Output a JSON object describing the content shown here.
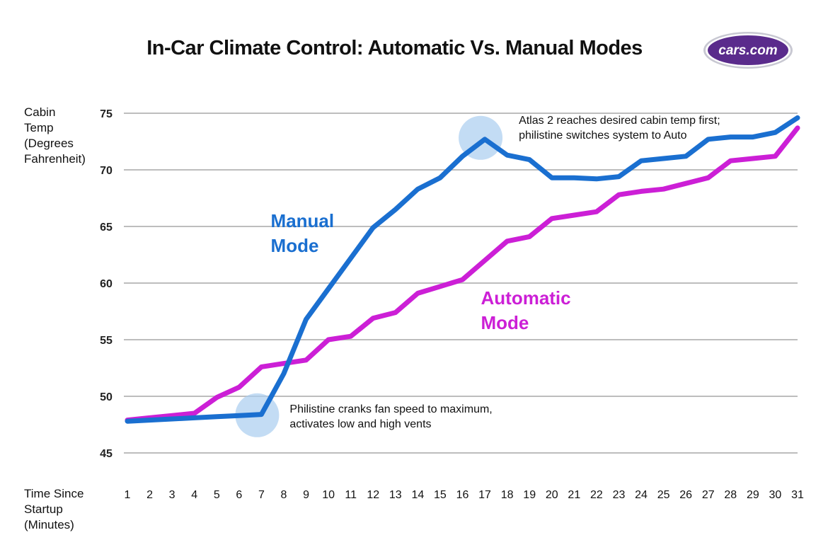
{
  "title": "In-Car Climate Control: Automatic Vs. Manual Modes",
  "logo": {
    "text": "cars.com",
    "colors": {
      "ring": "#b9b9c6",
      "fill": "#5a2b8c"
    }
  },
  "y_axis_label": [
    "Cabin",
    "Temp",
    "(Degrees",
    "Fahrenheit)"
  ],
  "x_axis_label": [
    "Time Since",
    "Startup",
    "(Minutes)"
  ],
  "chart_data": {
    "type": "line",
    "title": "In-Car Climate Control: Automatic Vs. Manual Modes",
    "xlabel": "Time Since Startup (Minutes)",
    "ylabel": "Cabin Temp (Degrees Fahrenheit)",
    "ylim": [
      45,
      75
    ],
    "yticks": [
      45,
      50,
      55,
      60,
      65,
      70,
      75
    ],
    "categories": [
      "1",
      "2",
      "3",
      "4",
      "5",
      "6",
      "7",
      "8",
      "9",
      "10",
      "11",
      "12",
      "13",
      "14",
      "15",
      "16",
      "17",
      "18",
      "19",
      "20",
      "21",
      "22",
      "23",
      "24",
      "25",
      "26",
      "27",
      "28",
      "29",
      "30",
      "31"
    ],
    "series": [
      {
        "name": "Manual Mode",
        "label_lines": [
          "Manual",
          "Mode"
        ],
        "color": "#1a6fd0",
        "values": [
          47.8,
          47.9,
          48.0,
          48.1,
          48.2,
          48.3,
          48.4,
          52.0,
          56.8,
          59.5,
          62.2,
          64.9,
          66.5,
          68.3,
          69.3,
          71.2,
          72.7,
          71.3,
          70.9,
          69.3,
          69.3,
          69.2,
          69.4,
          70.8,
          71.0,
          71.2,
          72.7,
          72.9,
          72.9,
          73.3,
          74.6
        ]
      },
      {
        "name": "Automatic Mode",
        "label_lines": [
          "Automatic",
          "Mode"
        ],
        "color": "#cc1fd6",
        "values": [
          47.9,
          48.1,
          48.3,
          48.5,
          49.9,
          50.8,
          52.6,
          52.9,
          53.2,
          55.0,
          55.3,
          56.9,
          57.4,
          59.1,
          59.7,
          60.3,
          62.0,
          63.7,
          64.1,
          65.7,
          66.0,
          66.3,
          67.8,
          68.1,
          68.3,
          68.8,
          69.3,
          70.8,
          71.0,
          71.2,
          73.7
        ]
      }
    ],
    "annotations": [
      {
        "lines": [
          "Atlas 2 reaches desired cabin temp first;",
          "philistine switches system to Auto"
        ],
        "at_minute": 17,
        "at_value": 72.7
      },
      {
        "lines": [
          "Philistine cranks fan speed to maximum,",
          "activates low and high vents"
        ],
        "at_minute": 7,
        "at_value": 48.2
      }
    ],
    "grid": true,
    "legend": "inline labels"
  }
}
